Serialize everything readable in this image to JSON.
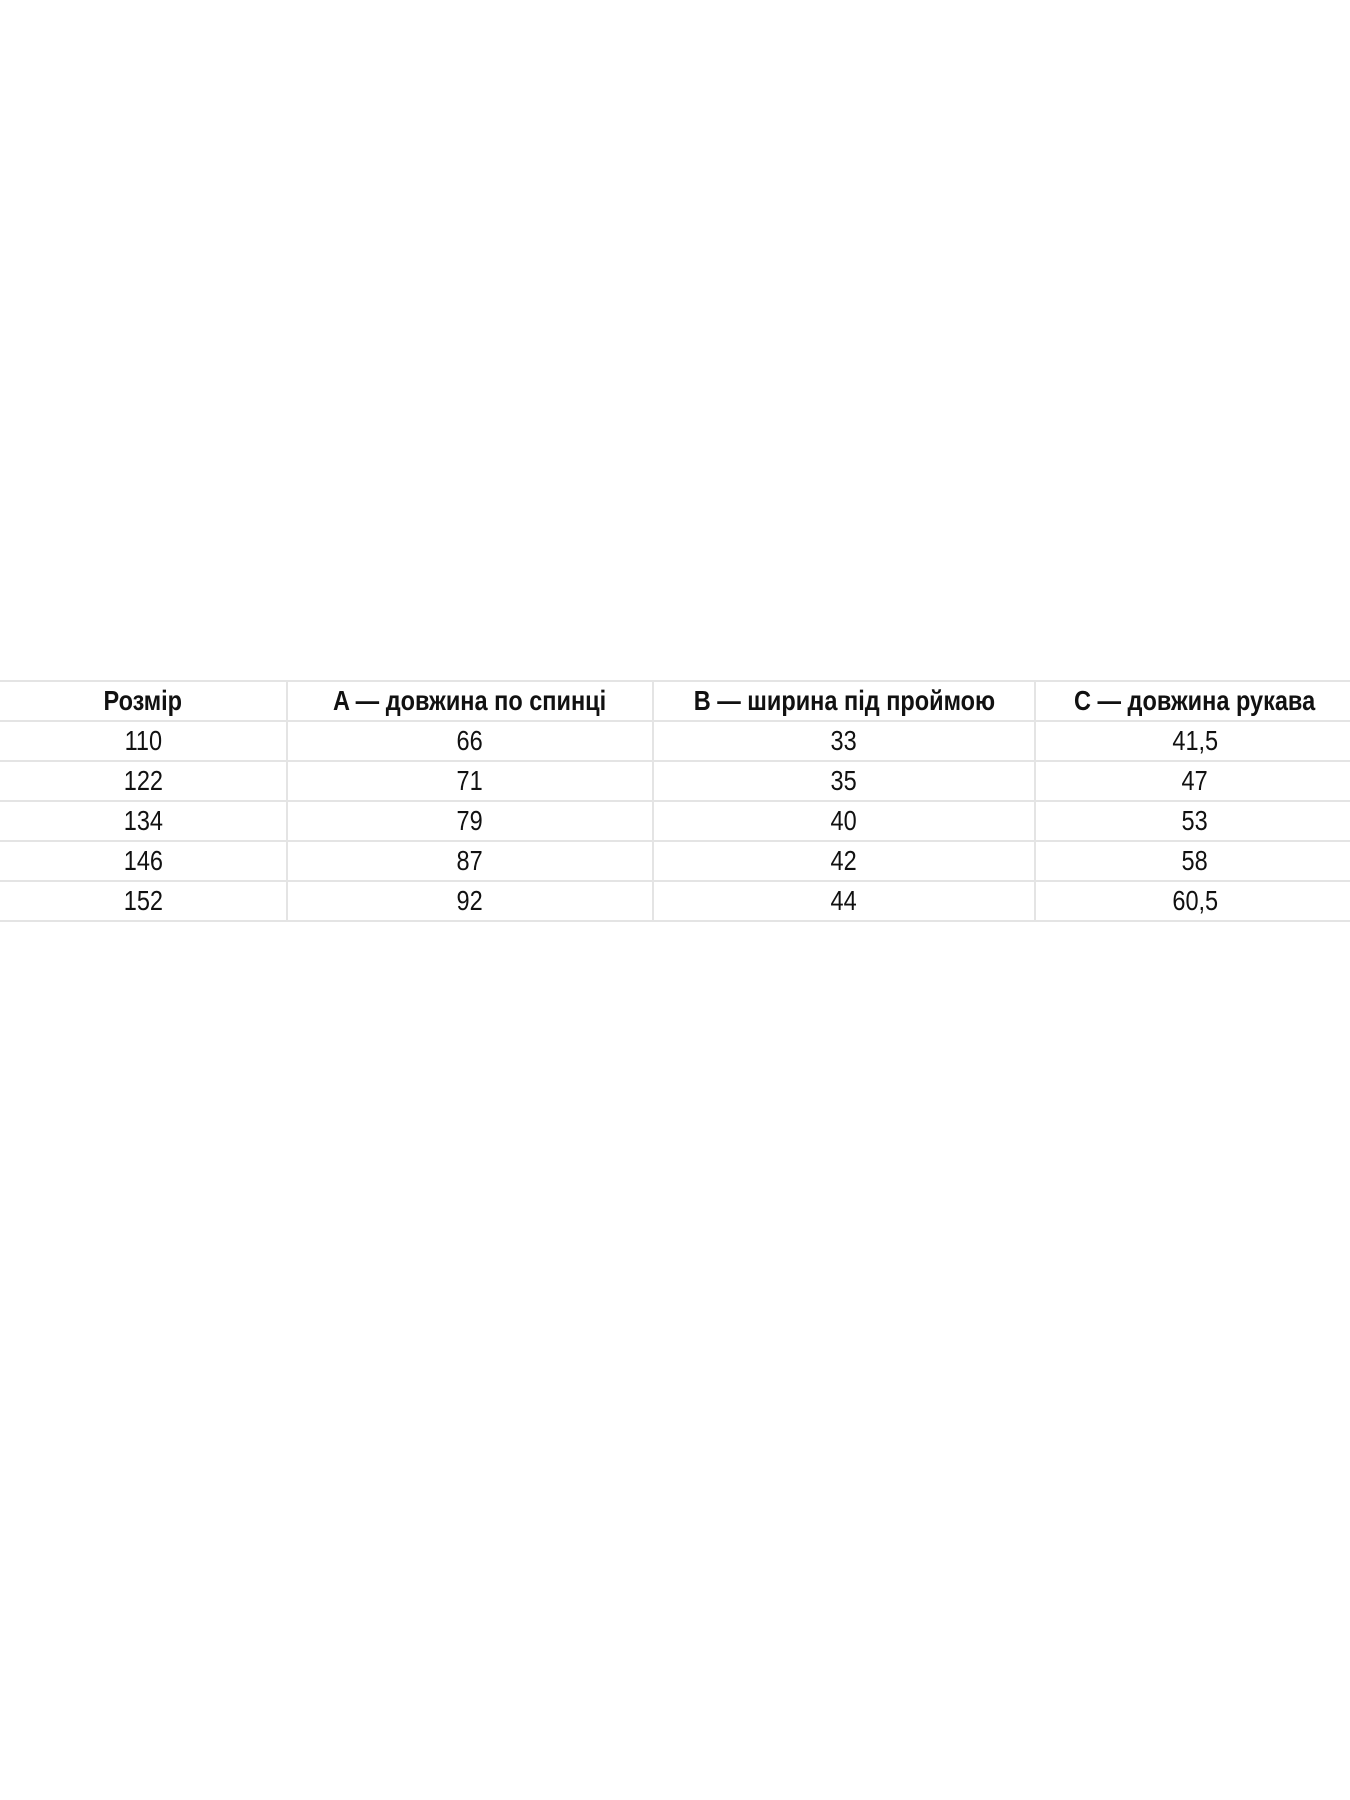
{
  "table": {
    "headers": [
      "Розмір",
      "A — довжина по спинці",
      "B — ширина під проймою",
      "C — довжина рукава"
    ],
    "rows": [
      [
        "110",
        "66",
        "33",
        "41,5"
      ],
      [
        "122",
        "71",
        "35",
        "47"
      ],
      [
        "134",
        "79",
        "40",
        "53"
      ],
      [
        "146",
        "87",
        "42",
        "58"
      ],
      [
        "152",
        "92",
        "44",
        "60,5"
      ]
    ]
  },
  "colors": {
    "border": "#e4e4e4",
    "text": "#111111",
    "background": "#ffffff"
  }
}
